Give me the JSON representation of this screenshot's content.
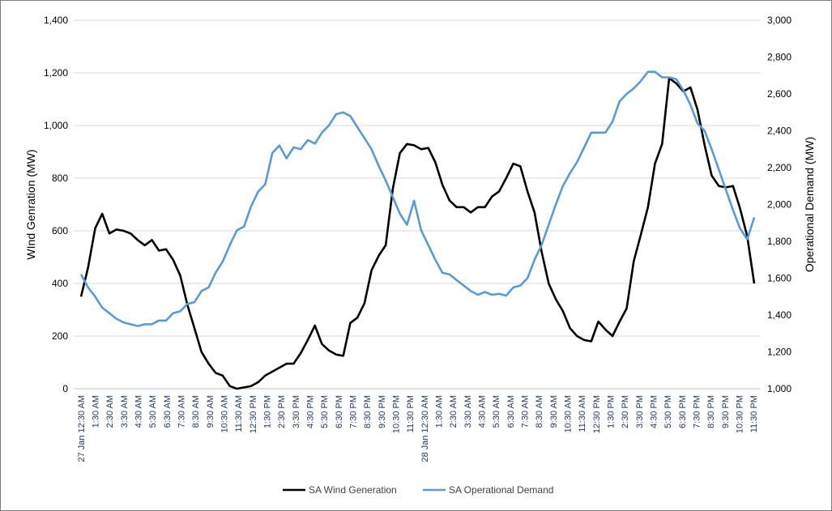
{
  "chart_data": {
    "type": "line",
    "ylabel": "WInd Genration (MW)",
    "y2label": "Operational Demand (MW)",
    "ylim": [
      0,
      1400
    ],
    "y2lim": [
      1000,
      3000
    ],
    "yticks": [
      "0",
      "200",
      "400",
      "600",
      "800",
      "1,000",
      "1,200",
      "1,400"
    ],
    "y2ticks": [
      "1,000",
      "1,200",
      "1,400",
      "1,600",
      "1,800",
      "2,000",
      "2,200",
      "2,400",
      "2,600",
      "2,800",
      "3,000"
    ],
    "grid": true,
    "legend_position": "bottom",
    "x_labels": [
      "27 Jan 12:30 AM",
      "1:30 AM",
      "2:30 AM",
      "3:30 AM",
      "4:30 AM",
      "5:30 AM",
      "6:30 AM",
      "7:30 AM",
      "8:30 AM",
      "9:30 AM",
      "10:30 AM",
      "11:30 AM",
      "12:30 PM",
      "1:30 PM",
      "2:30 PM",
      "3:30 PM",
      "4:30 PM",
      "5:30 PM",
      "6:30 PM",
      "7:30 PM",
      "8:30 PM",
      "9:30 PM",
      "10:30 PM",
      "11:30 PM",
      "28 Jan 12:30 AM",
      "1:30 AM",
      "2:30 AM",
      "3:30 AM",
      "4:30 AM",
      "5:30 AM",
      "6:30 AM",
      "7:30 AM",
      "8:30 AM",
      "9:30 AM",
      "10:30 AM",
      "11:30 AM",
      "12:30 PM",
      "1:30 PM",
      "2:30 PM",
      "3:30 PM",
      "4:30 PM",
      "5:30 PM",
      "6:30 PM",
      "7:30 PM",
      "8:30 PM",
      "9:30 PM",
      "10:30 PM",
      "11:30 PM"
    ],
    "series": [
      {
        "name": "SA Wind Generation",
        "axis": "left",
        "color": "#000000",
        "values": [
          350,
          460,
          610,
          665,
          590,
          605,
          600,
          590,
          565,
          545,
          565,
          525,
          530,
          490,
          430,
          320,
          230,
          140,
          95,
          60,
          50,
          10,
          0,
          5,
          10,
          25,
          50,
          65,
          80,
          95,
          95,
          135,
          185,
          240,
          170,
          145,
          130,
          125,
          250,
          270,
          325,
          450,
          505,
          545,
          760,
          895,
          930,
          925,
          910,
          915,
          860,
          775,
          715,
          690,
          690,
          670,
          690,
          690,
          730,
          750,
          800,
          855,
          845,
          750,
          670,
          520,
          400,
          340,
          295,
          230,
          200,
          185,
          180,
          255,
          225,
          200,
          255,
          305,
          485,
          585,
          690,
          855,
          930,
          1180,
          1160,
          1130,
          1145,
          1060,
          925,
          810,
          770,
          765,
          770,
          685,
          580,
          400
        ]
      },
      {
        "name": "SA Operational Demand",
        "axis": "right",
        "color": "#5b9bd5",
        "values": [
          1620,
          1550,
          1500,
          1440,
          1410,
          1380,
          1360,
          1350,
          1340,
          1350,
          1350,
          1370,
          1370,
          1410,
          1420,
          1460,
          1470,
          1530,
          1550,
          1630,
          1690,
          1780,
          1860,
          1880,
          1990,
          2070,
          2110,
          2280,
          2320,
          2250,
          2310,
          2300,
          2350,
          2330,
          2390,
          2430,
          2490,
          2500,
          2480,
          2420,
          2360,
          2300,
          2210,
          2130,
          2040,
          1950,
          1890,
          2020,
          1860,
          1780,
          1700,
          1630,
          1620,
          1590,
          1560,
          1530,
          1510,
          1525,
          1510,
          1515,
          1505,
          1550,
          1560,
          1600,
          1700,
          1780,
          1890,
          2000,
          2100,
          2170,
          2230,
          2310,
          2390,
          2390,
          2390,
          2450,
          2560,
          2600,
          2630,
          2670,
          2720,
          2720,
          2690,
          2690,
          2680,
          2620,
          2540,
          2440,
          2400,
          2300,
          2190,
          2080,
          1970,
          1870,
          1810,
          1930
        ]
      }
    ]
  }
}
